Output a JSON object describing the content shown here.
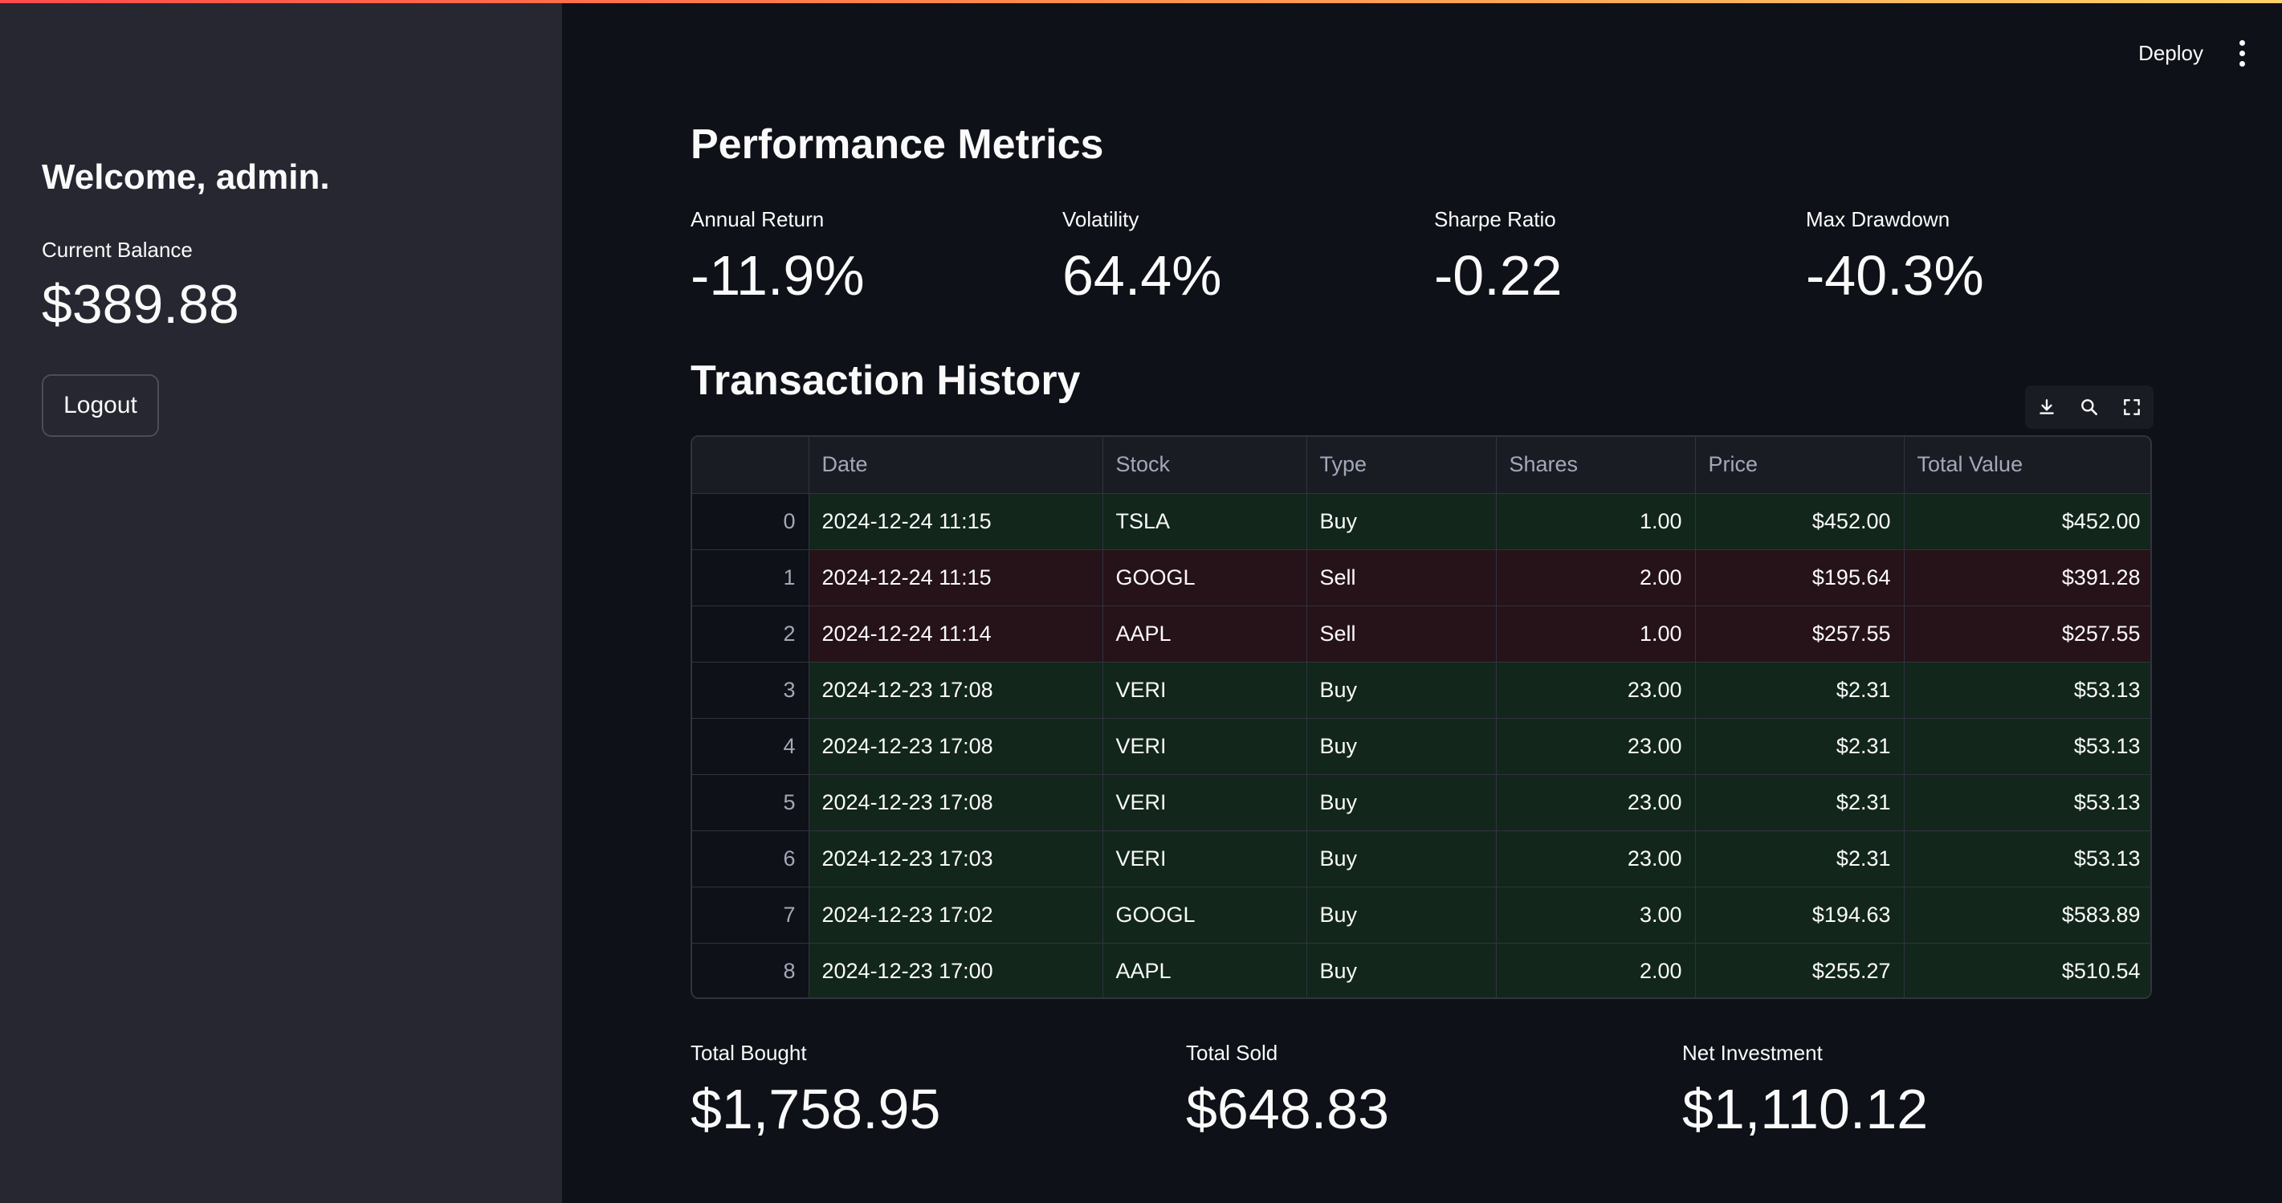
{
  "sidebar": {
    "welcome": "Welcome, admin.",
    "balance_label": "Current Balance",
    "balance_value": "$389.88",
    "logout_label": "Logout"
  },
  "header": {
    "deploy_label": "Deploy",
    "menu_icon": "kebab-menu-icon"
  },
  "performance": {
    "title": "Performance Metrics",
    "metrics": [
      {
        "label": "Annual Return",
        "value": "-11.9%"
      },
      {
        "label": "Volatility",
        "value": "64.4%"
      },
      {
        "label": "Sharpe Ratio",
        "value": "-0.22"
      },
      {
        "label": "Max Drawdown",
        "value": "-40.3%"
      }
    ]
  },
  "transactions": {
    "title": "Transaction History",
    "toolbar_icons": [
      "download-icon",
      "search-icon",
      "fullscreen-icon"
    ],
    "columns": [
      "",
      "Date",
      "Stock",
      "Type",
      "Shares",
      "Price",
      "Total Value"
    ],
    "rows": [
      {
        "index": "0",
        "date": "2024-12-24 11:15",
        "stock": "TSLA",
        "type": "Buy",
        "shares": "1.00",
        "price": "$452.00",
        "total": "$452.00"
      },
      {
        "index": "1",
        "date": "2024-12-24 11:15",
        "stock": "GOOGL",
        "type": "Sell",
        "shares": "2.00",
        "price": "$195.64",
        "total": "$391.28"
      },
      {
        "index": "2",
        "date": "2024-12-24 11:14",
        "stock": "AAPL",
        "type": "Sell",
        "shares": "1.00",
        "price": "$257.55",
        "total": "$257.55"
      },
      {
        "index": "3",
        "date": "2024-12-23 17:08",
        "stock": "VERI",
        "type": "Buy",
        "shares": "23.00",
        "price": "$2.31",
        "total": "$53.13"
      },
      {
        "index": "4",
        "date": "2024-12-23 17:08",
        "stock": "VERI",
        "type": "Buy",
        "shares": "23.00",
        "price": "$2.31",
        "total": "$53.13"
      },
      {
        "index": "5",
        "date": "2024-12-23 17:08",
        "stock": "VERI",
        "type": "Buy",
        "shares": "23.00",
        "price": "$2.31",
        "total": "$53.13"
      },
      {
        "index": "6",
        "date": "2024-12-23 17:03",
        "stock": "VERI",
        "type": "Buy",
        "shares": "23.00",
        "price": "$2.31",
        "total": "$53.13"
      },
      {
        "index": "7",
        "date": "2024-12-23 17:02",
        "stock": "GOOGL",
        "type": "Buy",
        "shares": "3.00",
        "price": "$194.63",
        "total": "$583.89"
      },
      {
        "index": "8",
        "date": "2024-12-23 17:00",
        "stock": "AAPL",
        "type": "Buy",
        "shares": "2.00",
        "price": "$255.27",
        "total": "$510.54"
      }
    ]
  },
  "summary": [
    {
      "label": "Total Bought",
      "value": "$1,758.95"
    },
    {
      "label": "Total Sold",
      "value": "$648.83"
    },
    {
      "label": "Net Investment",
      "value": "$1,110.12"
    }
  ],
  "colors": {
    "buy_row": "#12261b",
    "sell_row": "#261219",
    "background": "#0e1117",
    "sidebar": "#262730",
    "accent_gradient": [
      "#ff4b4b",
      "#ffd16a"
    ]
  }
}
